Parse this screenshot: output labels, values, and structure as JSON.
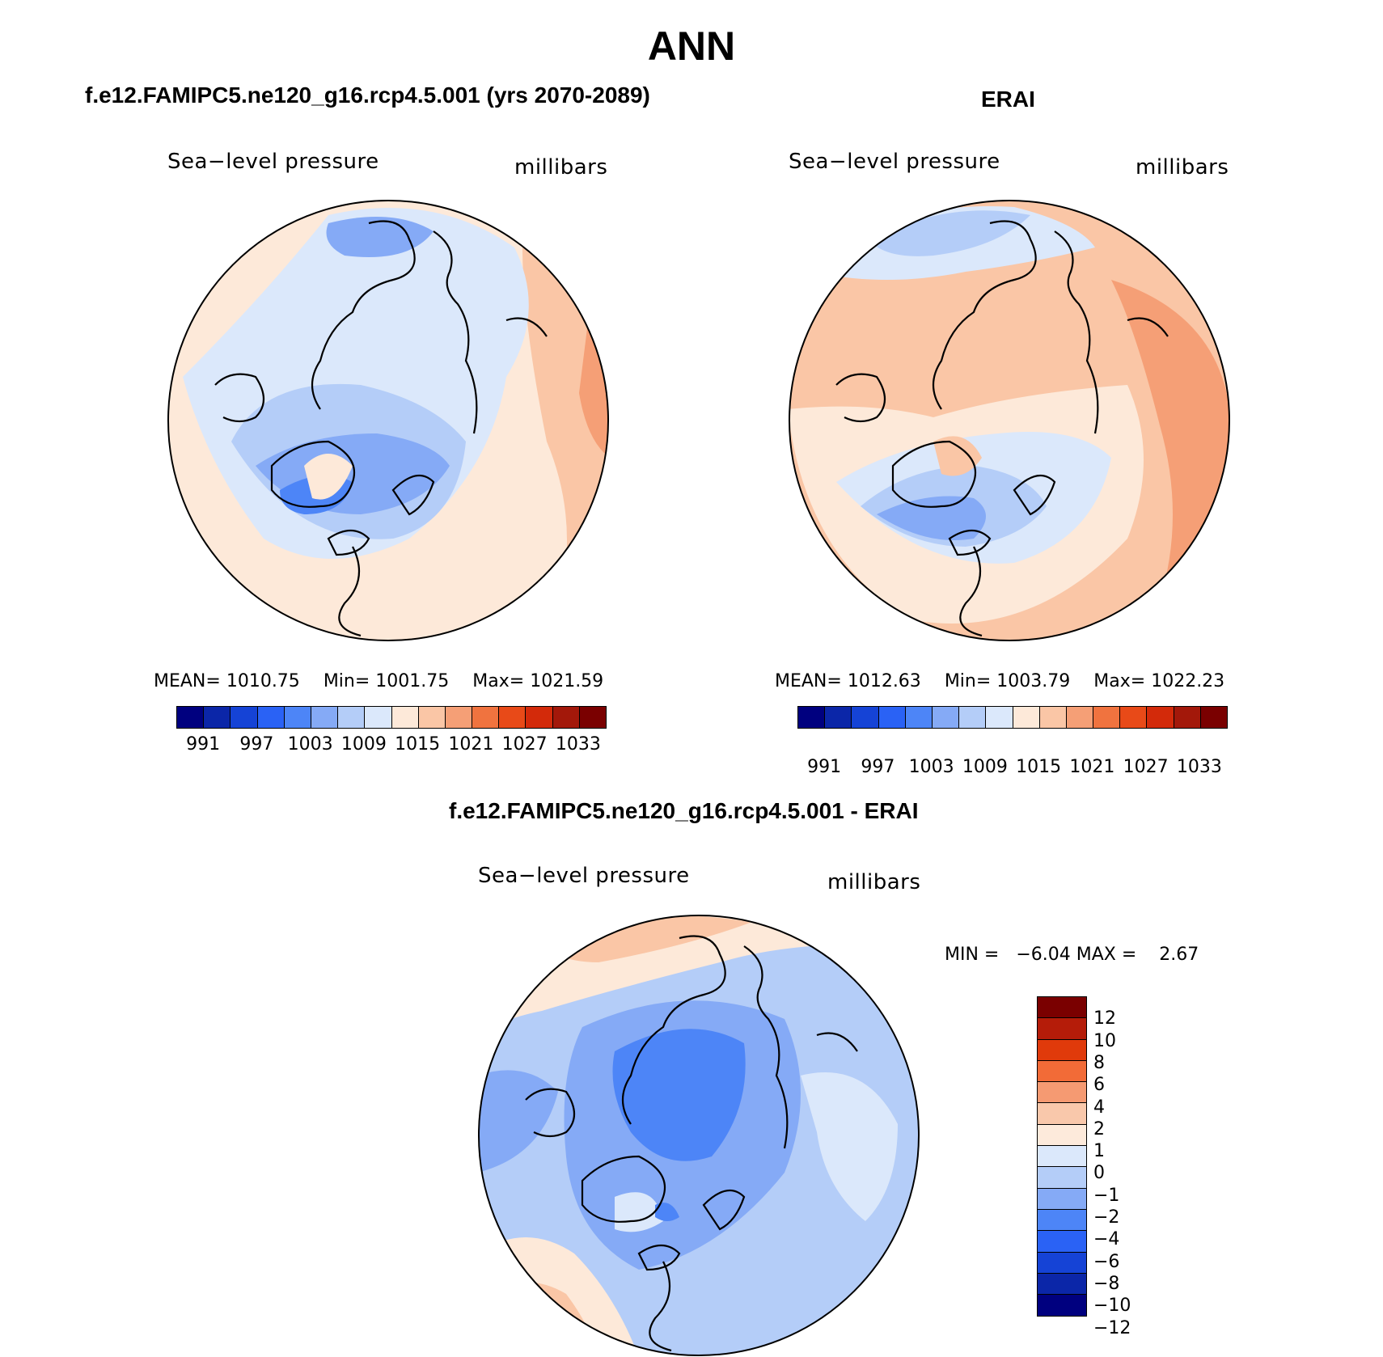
{
  "title": "ANN",
  "panels": [
    {
      "title": "f.e12.FAMIPC5.ne120_g16.rcp4.5.001 (yrs 2070-2089)",
      "variable": "Sea−level pressure",
      "units": "millibars",
      "mean_label": "MEAN=",
      "mean": "1010.75",
      "min_label": "Min=",
      "min": "1001.75",
      "max_label": "Max=",
      "max": "1021.59"
    },
    {
      "title": "ERAI",
      "variable": "Sea−level pressure",
      "units": "millibars",
      "mean_label": "MEAN=",
      "mean": "1012.63",
      "min_label": "Min=",
      "min": "1003.79",
      "max_label": "Max=",
      "max": "1022.23"
    }
  ],
  "diff_panel": {
    "title": "f.e12.FAMIPC5.ne120_g16.rcp4.5.001 - ERAI",
    "variable": "Sea−level pressure",
    "units": "millibars",
    "minmax": "MIN =   −6.04 MAX =    2.67"
  },
  "abs_colorbar": {
    "colors": [
      "#00007f",
      "#0b26a8",
      "#1543d6",
      "#2a62f5",
      "#4d85f7",
      "#85aaf6",
      "#b4cdf8",
      "#dbe8fb",
      "#fde9d9",
      "#fac6a6",
      "#f59f76",
      "#f0733f",
      "#e84a18",
      "#d32a0a",
      "#a3180a",
      "#7a0000"
    ],
    "tick_labels": [
      "991",
      "997",
      "1003",
      "1009",
      "1015",
      "1021",
      "1027",
      "1033"
    ]
  },
  "diff_colorbar": {
    "colors": [
      "#7a0000",
      "#b51c09",
      "#e03a0b",
      "#f26b37",
      "#f59a72",
      "#f9c8ab",
      "#fdeadb",
      "#dbe8fb",
      "#b4cdf8",
      "#85aaf6",
      "#4d85f7",
      "#2a62f5",
      "#1543d6",
      "#0b26a8",
      "#00007f"
    ],
    "tick_labels": [
      "12",
      "10",
      "8",
      "6",
      "4",
      "2",
      "1",
      "0",
      "−1",
      "−2",
      "−4",
      "−6",
      "−8",
      "−10",
      "−12"
    ]
  },
  "map_colors": {
    "ocean_edge_warm": "#fde9d9",
    "warm2": "#fac6a6",
    "warm3": "#f59f76",
    "cool1": "#dbe8fb",
    "cool2": "#b4cdf8",
    "cool3": "#85aaf6",
    "cool4": "#4d85f7",
    "cool5": "#2a62f5"
  }
}
